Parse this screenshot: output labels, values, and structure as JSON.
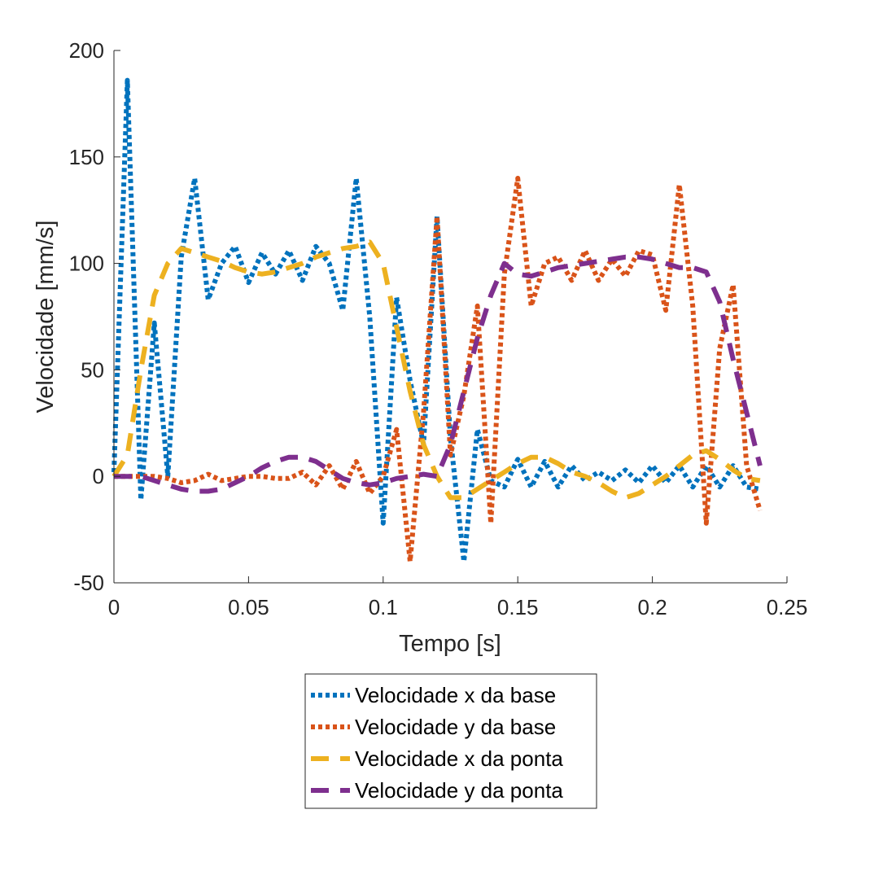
{
  "chart_data": {
    "type": "line",
    "title": "",
    "xlabel": "Tempo [s]",
    "ylabel": "Velocidade [mm/s]",
    "xlim": [
      0,
      0.25
    ],
    "ylim": [
      -50,
      200
    ],
    "xticks": [
      0,
      0.05,
      0.1,
      0.15,
      0.2,
      0.25
    ],
    "xtick_labels": [
      "0",
      "0.05",
      "0.1",
      "0.15",
      "0.2",
      "0.25"
    ],
    "yticks": [
      -50,
      0,
      50,
      100,
      150,
      200
    ],
    "ytick_labels": [
      "-50",
      "0",
      "50",
      "100",
      "150",
      "200"
    ],
    "grid": false,
    "legend_position": "bottom-center-outside",
    "series": [
      {
        "name": "Velocidade x da base",
        "color": "#0072BD",
        "style": "dotted",
        "x": [
          0,
          0.005,
          0.01,
          0.015,
          0.02,
          0.025,
          0.03,
          0.035,
          0.04,
          0.045,
          0.05,
          0.055,
          0.06,
          0.065,
          0.07,
          0.075,
          0.08,
          0.085,
          0.09,
          0.095,
          0.1,
          0.105,
          0.11,
          0.115,
          0.12,
          0.125,
          0.13,
          0.135,
          0.14,
          0.145,
          0.15,
          0.155,
          0.16,
          0.165,
          0.17,
          0.175,
          0.18,
          0.185,
          0.19,
          0.195,
          0.2,
          0.205,
          0.21,
          0.215,
          0.22,
          0.225,
          0.23,
          0.235,
          0.24
        ],
        "y": [
          2,
          186,
          -11,
          72,
          0,
          103,
          140,
          83,
          100,
          108,
          91,
          105,
          95,
          106,
          92,
          108,
          100,
          78,
          140,
          75,
          -22,
          84,
          45,
          15,
          122,
          18,
          -40,
          22,
          -2,
          -5,
          8,
          -5,
          7,
          -5,
          5,
          -2,
          2,
          -2,
          3,
          -3,
          5,
          -3,
          5,
          -5,
          5,
          -5,
          5,
          -5,
          -6
        ]
      },
      {
        "name": "Velocidade y da base",
        "color": "#D95319",
        "style": "dotted",
        "x": [
          0,
          0.005,
          0.01,
          0.015,
          0.02,
          0.025,
          0.03,
          0.035,
          0.04,
          0.045,
          0.05,
          0.055,
          0.06,
          0.065,
          0.07,
          0.075,
          0.08,
          0.085,
          0.09,
          0.095,
          0.1,
          0.105,
          0.11,
          0.115,
          0.12,
          0.125,
          0.13,
          0.135,
          0.14,
          0.145,
          0.15,
          0.155,
          0.16,
          0.165,
          0.17,
          0.175,
          0.18,
          0.185,
          0.19,
          0.195,
          0.2,
          0.205,
          0.21,
          0.215,
          0.22,
          0.225,
          0.23,
          0.235,
          0.24
        ],
        "y": [
          0,
          0,
          0,
          0,
          -1,
          -3,
          -2,
          1,
          -2,
          -1,
          0,
          0,
          -1,
          -1,
          2,
          -4,
          5,
          -6,
          7,
          -8,
          0,
          22,
          -40,
          30,
          122,
          10,
          38,
          80,
          -22,
          95,
          140,
          80,
          100,
          103,
          92,
          106,
          92,
          102,
          94,
          106,
          104,
          78,
          137,
          80,
          -22,
          60,
          90,
          5,
          -16
        ]
      },
      {
        "name": "Velocidade x da ponta",
        "color": "#EDB120",
        "style": "dashed",
        "x": [
          0,
          0.005,
          0.01,
          0.015,
          0.02,
          0.025,
          0.03,
          0.035,
          0.04,
          0.045,
          0.05,
          0.055,
          0.06,
          0.065,
          0.07,
          0.075,
          0.08,
          0.085,
          0.09,
          0.095,
          0.1,
          0.105,
          0.11,
          0.115,
          0.12,
          0.125,
          0.13,
          0.135,
          0.14,
          0.145,
          0.15,
          0.155,
          0.16,
          0.165,
          0.17,
          0.175,
          0.18,
          0.185,
          0.19,
          0.195,
          0.2,
          0.205,
          0.21,
          0.215,
          0.22,
          0.225,
          0.23,
          0.235,
          0.24
        ],
        "y": [
          0,
          10,
          50,
          85,
          100,
          107,
          105,
          103,
          101,
          98,
          96,
          95,
          96,
          98,
          100,
          103,
          105,
          107,
          108,
          110,
          100,
          70,
          40,
          15,
          0,
          -10,
          -10,
          -6,
          -2,
          2,
          6,
          9,
          9,
          6,
          2,
          0,
          -3,
          -7,
          -10,
          -8,
          -4,
          0,
          5,
          10,
          12,
          8,
          3,
          -1,
          -2
        ]
      },
      {
        "name": "Velocidade y da ponta",
        "color": "#7E2F8E",
        "style": "dashed",
        "x": [
          0,
          0.005,
          0.01,
          0.015,
          0.02,
          0.025,
          0.03,
          0.035,
          0.04,
          0.045,
          0.05,
          0.055,
          0.06,
          0.065,
          0.07,
          0.075,
          0.08,
          0.085,
          0.09,
          0.095,
          0.1,
          0.105,
          0.11,
          0.115,
          0.12,
          0.125,
          0.13,
          0.135,
          0.14,
          0.145,
          0.15,
          0.155,
          0.16,
          0.165,
          0.17,
          0.175,
          0.18,
          0.185,
          0.19,
          0.195,
          0.2,
          0.205,
          0.21,
          0.215,
          0.22,
          0.225,
          0.23,
          0.235,
          0.24
        ],
        "y": [
          0,
          0,
          0,
          -2,
          -4,
          -6,
          -7,
          -7,
          -6,
          -3,
          0,
          4,
          7,
          9,
          9,
          7,
          3,
          -1,
          -3,
          -4,
          -3,
          -1,
          0,
          1,
          0,
          15,
          40,
          65,
          85,
          100,
          95,
          94,
          96,
          98,
          99,
          100,
          101,
          102,
          103,
          103,
          102,
          100,
          98,
          98,
          96,
          82,
          55,
          30,
          5
        ]
      }
    ]
  }
}
